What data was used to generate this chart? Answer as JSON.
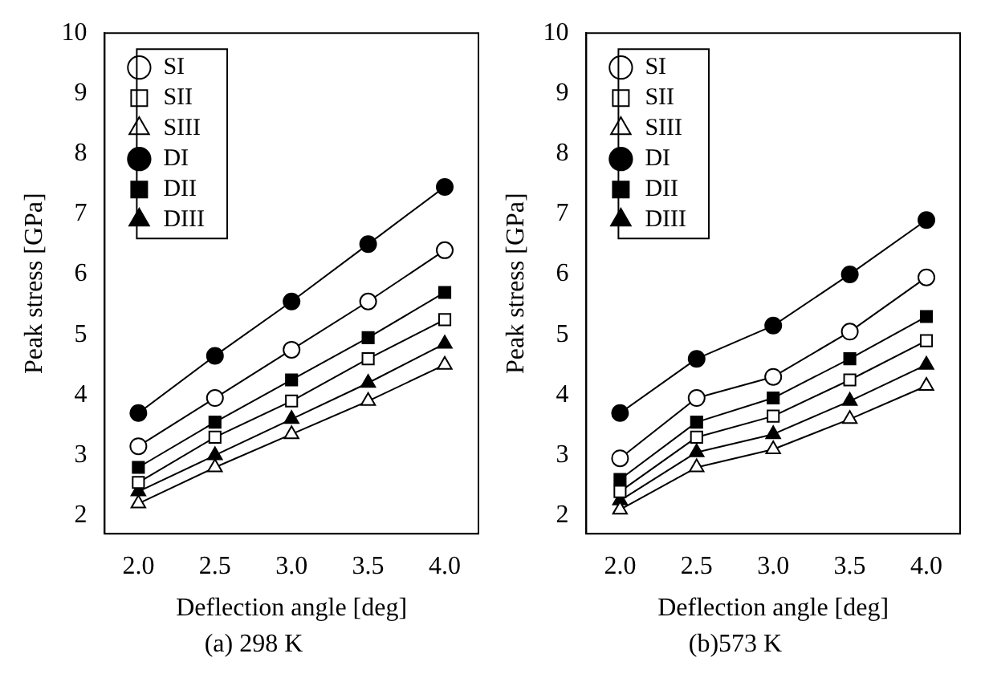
{
  "chart_data": [
    {
      "type": "line",
      "xlabel": "Deflection angle [deg]",
      "ylabel": "Peak stress [GPa]",
      "annotations": [
        "(a) 298 K"
      ],
      "x": [
        2.0,
        2.5,
        3.0,
        3.5,
        4.0
      ],
      "xlim": [
        1.78,
        4.22
      ],
      "xticks": [
        {
          "value": 2,
          "label": "2.0"
        },
        {
          "value": 2.5,
          "label": "2.5"
        },
        {
          "value": 3,
          "label": "3.0"
        },
        {
          "value": 3.5,
          "label": "3.5"
        },
        {
          "value": 4,
          "label": "4.0"
        }
      ],
      "ylim": [
        1.7,
        10
      ],
      "yticks": [
        2,
        3,
        4,
        5,
        6,
        7,
        8,
        9,
        10
      ],
      "grid": false,
      "legend": "top left",
      "line_style": "solid",
      "series": [
        {
          "name": "SI",
          "color": "#ffffff",
          "marker": "circle",
          "values": [
            3.15,
            3.95,
            4.75,
            5.55,
            6.4
          ]
        },
        {
          "name": "SII",
          "color": "#ffffff",
          "marker": "square",
          "values": [
            2.55,
            3.3,
            3.9,
            4.6,
            5.25
          ]
        },
        {
          "name": "SIII",
          "color": "#ffffff",
          "marker": "triangle",
          "values": [
            2.2,
            2.8,
            3.35,
            3.9,
            4.5
          ]
        },
        {
          "name": "DI",
          "color": "#000000",
          "marker": "circle",
          "values": [
            3.7,
            4.65,
            5.55,
            6.5,
            7.45
          ]
        },
        {
          "name": "DII",
          "color": "#000000",
          "marker": "square",
          "values": [
            2.8,
            3.55,
            4.25,
            4.95,
            5.7
          ]
        },
        {
          "name": "DIII",
          "color": "#000000",
          "marker": "triangle",
          "values": [
            2.4,
            3.0,
            3.6,
            4.2,
            4.85
          ]
        }
      ]
    },
    {
      "type": "line",
      "xlabel": "Deflection angle [deg]",
      "ylabel": "Peak stress [GPa]",
      "annotations": [
        "(b)573 K"
      ],
      "x": [
        2.0,
        2.5,
        3.0,
        3.5,
        4.0
      ],
      "xlim": [
        1.78,
        4.22
      ],
      "xticks": [
        {
          "value": 2,
          "label": "2.0"
        },
        {
          "value": 2.5,
          "label": "2.5"
        },
        {
          "value": 3,
          "label": "3.0"
        },
        {
          "value": 3.5,
          "label": "3.5"
        },
        {
          "value": 4,
          "label": "4.0"
        }
      ],
      "ylim": [
        1.7,
        10
      ],
      "yticks": [
        2,
        3,
        4,
        5,
        6,
        7,
        8,
        9,
        10
      ],
      "grid": false,
      "legend": "top left",
      "line_style": "solid",
      "series": [
        {
          "name": "SI",
          "color": "#ffffff",
          "marker": "circle",
          "values": [
            2.95,
            3.95,
            4.3,
            5.05,
            5.95
          ]
        },
        {
          "name": "SII",
          "color": "#ffffff",
          "marker": "square",
          "values": [
            2.4,
            3.3,
            3.65,
            4.25,
            4.9
          ]
        },
        {
          "name": "SIII",
          "color": "#ffffff",
          "marker": "triangle",
          "values": [
            2.1,
            2.8,
            3.1,
            3.6,
            4.15
          ]
        },
        {
          "name": "DI",
          "color": "#000000",
          "marker": "circle",
          "values": [
            3.7,
            4.6,
            5.15,
            6.0,
            6.9
          ]
        },
        {
          "name": "DII",
          "color": "#000000",
          "marker": "square",
          "values": [
            2.6,
            3.55,
            3.95,
            4.6,
            5.3
          ]
        },
        {
          "name": "DIII",
          "color": "#000000",
          "marker": "triangle",
          "values": [
            2.25,
            3.05,
            3.35,
            3.9,
            4.5
          ]
        }
      ]
    }
  ]
}
